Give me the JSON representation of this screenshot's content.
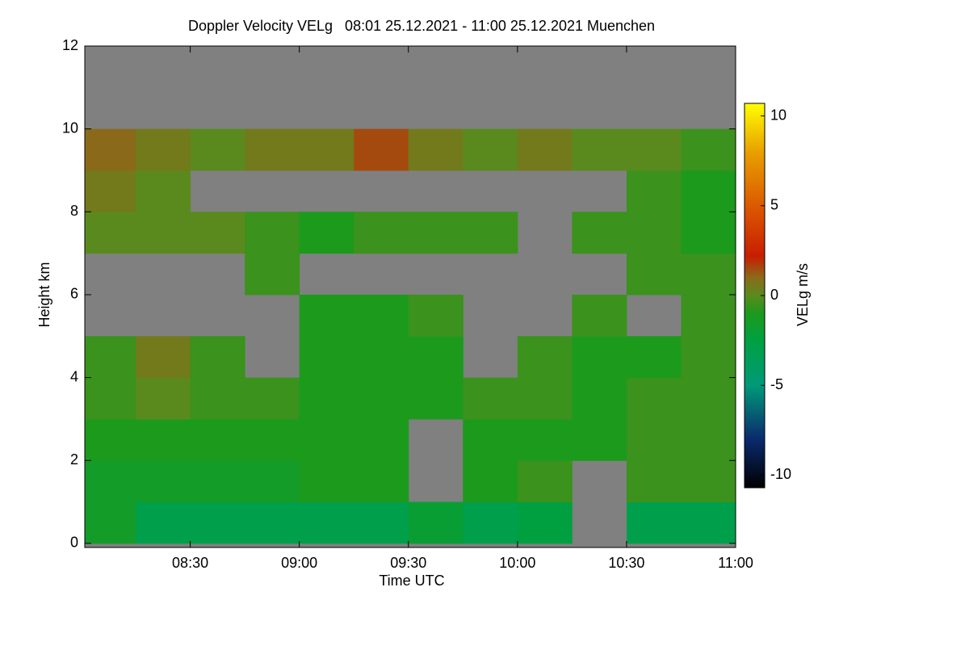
{
  "chart_data": {
    "type": "heatmap",
    "title": "Doppler Velocity VELg   08:01 25.12.2021 - 11:00 25.12.2021 Muenchen",
    "xlabel": "Time UTC",
    "ylabel": "Height km",
    "colorbar_label": "VELg m/s",
    "xlim": [
      481,
      660
    ],
    "xticks": [
      {
        "value": 510,
        "label": "08:30"
      },
      {
        "value": 540,
        "label": "09:00"
      },
      {
        "value": 570,
        "label": "09:30"
      },
      {
        "value": 600,
        "label": "10:00"
      },
      {
        "value": 630,
        "label": "10:30"
      },
      {
        "value": 660,
        "label": "11:00"
      }
    ],
    "ylim": [
      -0.1,
      12
    ],
    "yticks": [
      0,
      2,
      4,
      6,
      8,
      10,
      12
    ],
    "x_edges": [
      481,
      495,
      510,
      525,
      540,
      555,
      570,
      585,
      600,
      615,
      630,
      645,
      660
    ],
    "y_edges": [
      0,
      1,
      2,
      3,
      4,
      5,
      6,
      7,
      8,
      9,
      10,
      11,
      12
    ],
    "z": [
      [
        -1.5,
        -3,
        -3,
        -3,
        -3,
        -3,
        -2,
        -3,
        -2.5,
        null,
        -3,
        -3
      ],
      [
        -1.5,
        -1.5,
        -1.5,
        -1.5,
        -1,
        -1,
        null,
        -1,
        -0.5,
        null,
        -0.5,
        -0.5
      ],
      [
        -1,
        -1,
        -1,
        -1,
        -1,
        -1,
        null,
        -1,
        -1,
        -1,
        -0.5,
        -0.5
      ],
      [
        -0.5,
        0,
        -0.5,
        -0.5,
        -1,
        -1,
        -1,
        -0.5,
        -0.5,
        -1,
        -0.5,
        -0.5
      ],
      [
        -0.5,
        0.5,
        -0.5,
        null,
        -1,
        -1,
        -1,
        null,
        -0.5,
        -1,
        -1,
        -0.5
      ],
      [
        null,
        null,
        null,
        null,
        -1,
        -1,
        -0.5,
        null,
        null,
        -0.5,
        null,
        -0.5
      ],
      [
        null,
        null,
        null,
        -0.5,
        null,
        null,
        null,
        null,
        null,
        null,
        -0.5,
        -0.5
      ],
      [
        0,
        0,
        0,
        -0.5,
        -1,
        -0.5,
        -0.5,
        -0.5,
        null,
        -0.5,
        -0.5,
        -1
      ],
      [
        0.5,
        0,
        null,
        null,
        null,
        null,
        null,
        null,
        null,
        null,
        -0.5,
        -1
      ],
      [
        1,
        0.5,
        0,
        0.5,
        0.5,
        1.5,
        0.5,
        0,
        0.5,
        0,
        0,
        -0.5
      ],
      [
        null,
        null,
        null,
        null,
        null,
        null,
        null,
        null,
        null,
        null,
        null,
        null
      ],
      [
        null,
        null,
        null,
        null,
        null,
        null,
        null,
        null,
        null,
        null,
        null,
        null
      ]
    ],
    "missing_color": "#808080",
    "zlim": [
      -10.7,
      10.7
    ],
    "zticks": [
      -10,
      -5,
      0,
      5,
      10
    ],
    "colorscale": [
      [
        -10.7,
        "#000000"
      ],
      [
        -8,
        "#0a2a6e"
      ],
      [
        -5,
        "#009a78"
      ],
      [
        -2.5,
        "#00a040"
      ],
      [
        -1,
        "#1c9a1c"
      ],
      [
        0,
        "#5a8a1e"
      ],
      [
        1,
        "#8a6a1a"
      ],
      [
        2.2,
        "#c81e00"
      ],
      [
        5,
        "#dc5a00"
      ],
      [
        8,
        "#e8a000"
      ],
      [
        10.7,
        "#ffff00"
      ]
    ]
  }
}
